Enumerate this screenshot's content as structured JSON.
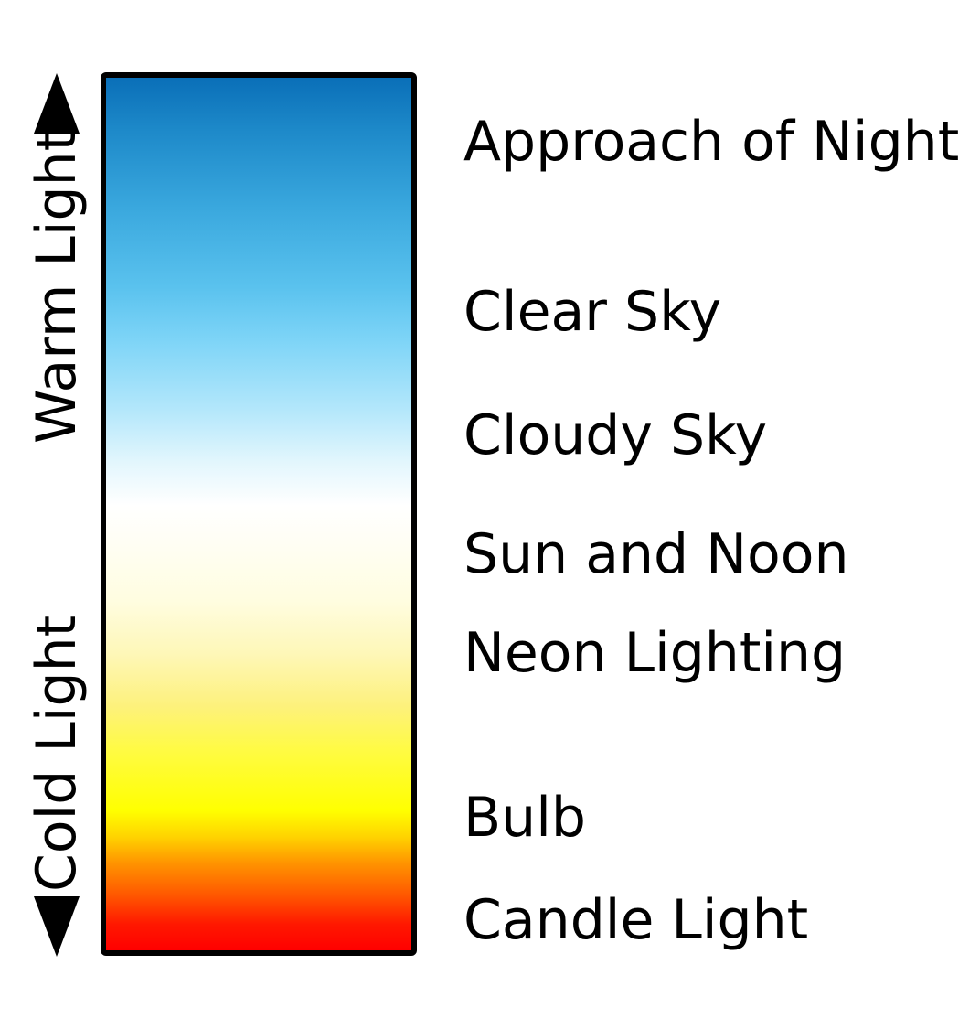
{
  "axis": {
    "top_label": "Warm Light",
    "bottom_label": "Cold Light"
  },
  "light_sources": [
    {
      "label": "Approach of Night"
    },
    {
      "label": "Clear Sky"
    },
    {
      "label": "Cloudy Sky"
    },
    {
      "label": "Sun and Noon"
    },
    {
      "label": "Neon Lighting"
    },
    {
      "label": "Bulb"
    },
    {
      "label": "Candle Light"
    }
  ],
  "colors": {
    "gradient_top": "#0a6fb8",
    "gradient_mid": "#ffffff",
    "gradient_yellow": "#ffff00",
    "gradient_bottom": "#ff0000",
    "border": "#000000",
    "text": "#000000"
  }
}
